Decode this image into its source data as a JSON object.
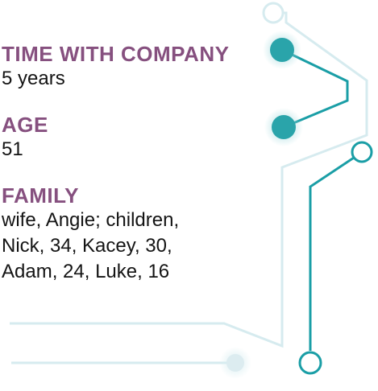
{
  "profile": {
    "tenure": {
      "label": "TIME WITH COMPANY",
      "value": "5 years"
    },
    "age": {
      "label": "AGE",
      "value": "51"
    },
    "family": {
      "label": "FAMILY",
      "lines": [
        "wife, Angie; children,",
        "Nick, 34, Kacey, 30,",
        "Adam, 24, Luke, 16"
      ]
    }
  },
  "colors": {
    "label": "#86507f",
    "text": "#141414",
    "circuit_teal": "#1a9ea6",
    "circuit_light": "#d6ebef"
  }
}
